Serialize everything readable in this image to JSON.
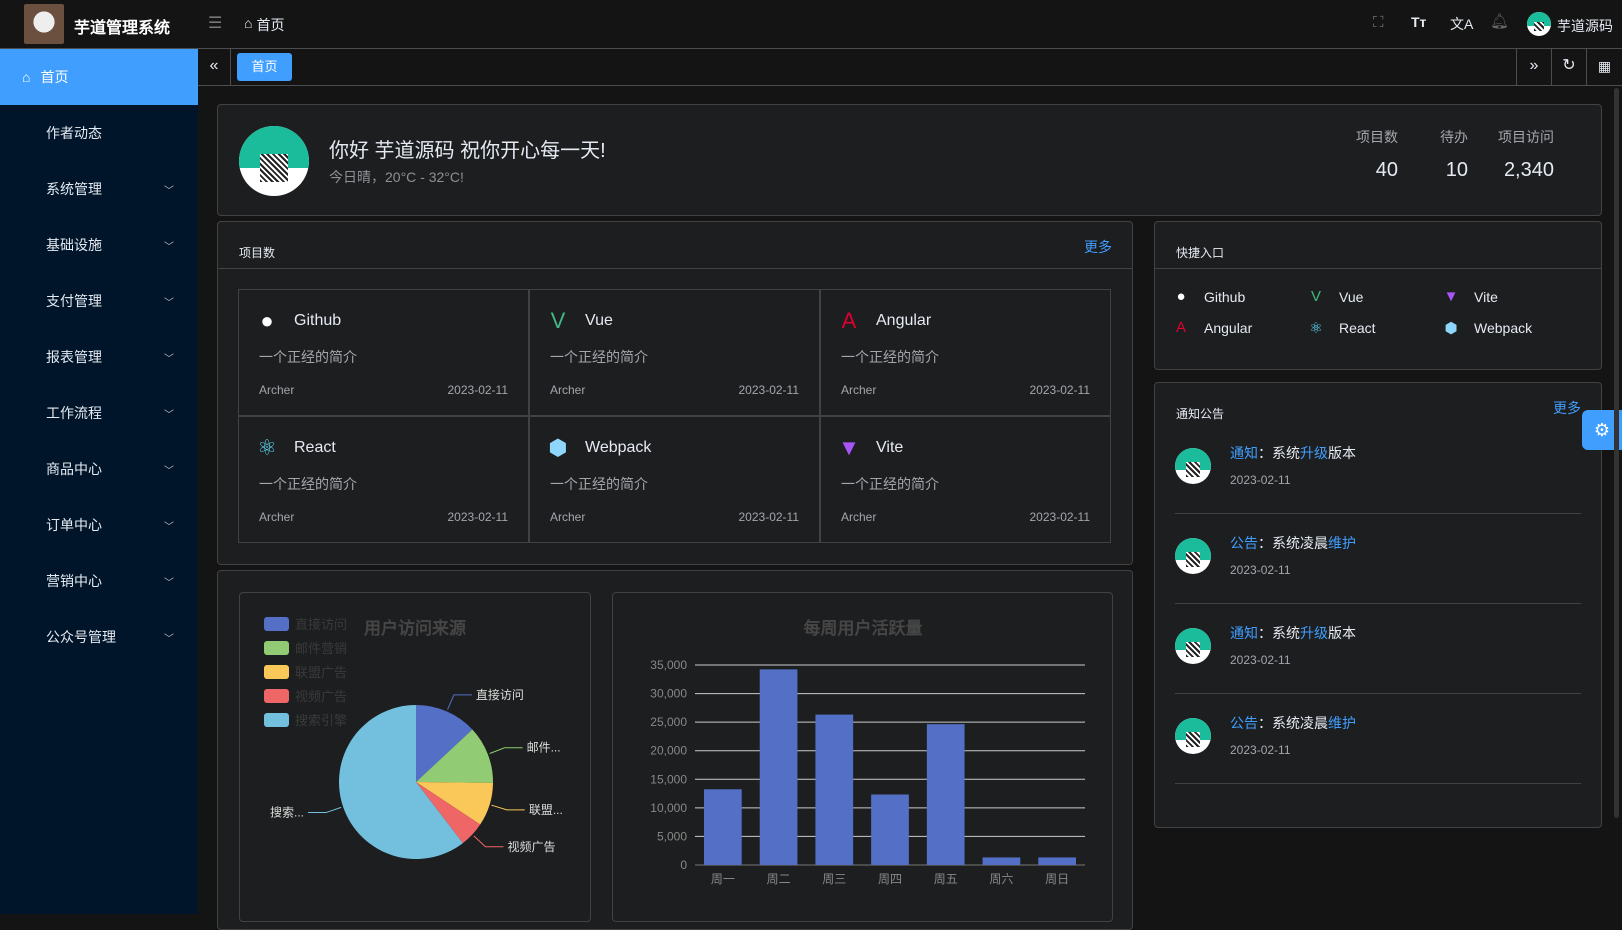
{
  "app": {
    "title": "芋道管理系统",
    "breadcrumb": "首页",
    "user": "芋道源码"
  },
  "header_icons": [
    "fullscreen-icon",
    "font-size-icon",
    "translate-icon",
    "bell-icon"
  ],
  "sidebar": {
    "items": [
      {
        "label": "首页",
        "active": true
      },
      {
        "label": "作者动态"
      },
      {
        "label": "系统管理"
      },
      {
        "label": "基础设施"
      },
      {
        "label": "支付管理"
      },
      {
        "label": "报表管理"
      },
      {
        "label": "工作流程"
      },
      {
        "label": "商品中心"
      },
      {
        "label": "订单中心"
      },
      {
        "label": "营销中心"
      },
      {
        "label": "公众号管理"
      }
    ]
  },
  "tabs": [
    {
      "label": "首页",
      "active": true
    }
  ],
  "welcome": {
    "greeting": "你好 芋道源码 祝你开心每一天!",
    "weather": "今日晴，20°C - 32°C!",
    "stats": [
      {
        "label": "项目数",
        "value": "40"
      },
      {
        "label": "待办",
        "value": "10"
      },
      {
        "label": "项目访问",
        "value": "2,340"
      }
    ]
  },
  "projects": {
    "title": "项目数",
    "more": "更多",
    "items": [
      {
        "name": "Github",
        "icon": "github-icon",
        "desc": "一个正经的简介",
        "author": "Archer",
        "date": "2023-02-11"
      },
      {
        "name": "Vue",
        "icon": "vue-icon",
        "desc": "一个正经的简介",
        "author": "Archer",
        "date": "2023-02-11"
      },
      {
        "name": "Angular",
        "icon": "angular-icon",
        "desc": "一个正经的简介",
        "author": "Archer",
        "date": "2023-02-11"
      },
      {
        "name": "React",
        "icon": "react-icon",
        "desc": "一个正经的简介",
        "author": "Archer",
        "date": "2023-02-11"
      },
      {
        "name": "Webpack",
        "icon": "webpack-icon",
        "desc": "一个正经的简介",
        "author": "Archer",
        "date": "2023-02-11"
      },
      {
        "name": "Vite",
        "icon": "vite-icon",
        "desc": "一个正经的简介",
        "author": "Archer",
        "date": "2023-02-11"
      }
    ]
  },
  "shortcuts": {
    "title": "快捷入口",
    "items": [
      {
        "name": "Github"
      },
      {
        "name": "Vue"
      },
      {
        "name": "Vite"
      },
      {
        "name": "Angular"
      },
      {
        "name": "React"
      },
      {
        "name": "Webpack"
      }
    ]
  },
  "notices": {
    "title": "通知公告",
    "more": "更多",
    "items": [
      {
        "type": "通知",
        "sep": "：",
        "a": "系统",
        "b": "升级",
        "c": "版本",
        "date": "2023-02-11"
      },
      {
        "type": "公告",
        "sep": "：",
        "a": "系统凌晨",
        "b": "维护",
        "c": "",
        "date": "2023-02-11"
      },
      {
        "type": "通知",
        "sep": "：",
        "a": "系统",
        "b": "升级",
        "c": "版本",
        "date": "2023-02-11"
      },
      {
        "type": "公告",
        "sep": "：",
        "a": "系统凌晨",
        "b": "维护",
        "c": "",
        "date": "2023-02-11"
      }
    ]
  },
  "colors": {
    "primary": "#409eff",
    "bar": "#5470c6"
  },
  "chart_data": [
    {
      "type": "pie",
      "title": "用户访问来源",
      "legend_position": "top-left",
      "slices": [
        {
          "name": "直接访问",
          "label": "直接访问",
          "value": 335,
          "color": "#5470c6"
        },
        {
          "name": "邮件营销",
          "label": "邮件...",
          "value": 310,
          "color": "#91cc75"
        },
        {
          "name": "联盟广告",
          "label": "联盟...",
          "value": 234,
          "color": "#fac858"
        },
        {
          "name": "视频广告",
          "label": "视频广告",
          "value": 135,
          "color": "#ee6666"
        },
        {
          "name": "搜索引擎",
          "label": "搜索...",
          "value": 1548,
          "color": "#73c0de"
        }
      ]
    },
    {
      "type": "bar",
      "title": "每周用户活跃量",
      "categories": [
        "周一",
        "周二",
        "周三",
        "周四",
        "周五",
        "周六",
        "周日"
      ],
      "values": [
        13253,
        34235,
        26321,
        12340,
        24643,
        1322,
        1324
      ],
      "ylim": [
        0,
        35000
      ],
      "yticks": [
        "0",
        "5,000",
        "10,000",
        "15,000",
        "20,000",
        "25,000",
        "30,000",
        "35,000"
      ],
      "grid": true
    }
  ]
}
